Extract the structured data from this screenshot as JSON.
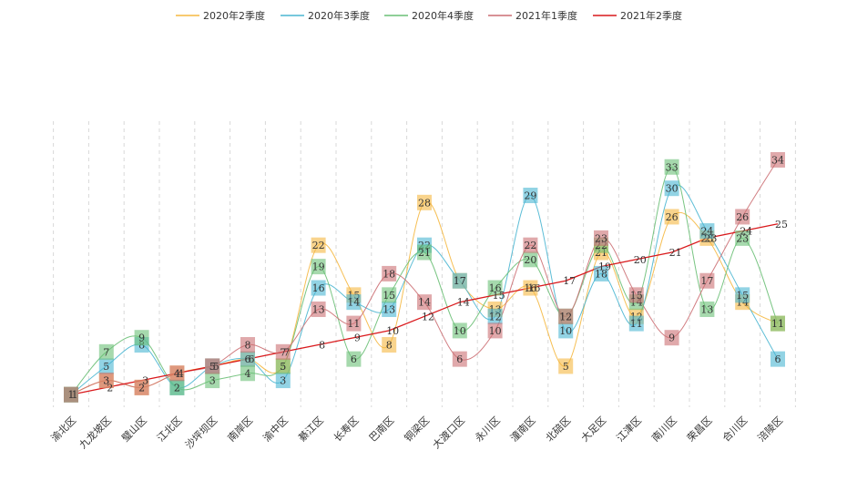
{
  "chart_data": {
    "type": "line",
    "categories": [
      "渝北区",
      "九龙坡区",
      "璧山区",
      "江北区",
      "沙坪坝区",
      "南岸区",
      "渝中区",
      "綦江区",
      "长寿区",
      "巴南区",
      "铜梁区",
      "大渡口区",
      "永川区",
      "潼南区",
      "北碚区",
      "大足区",
      "江津区",
      "南川区",
      "荣昌区",
      "合川区",
      "涪陵区"
    ],
    "series": [
      {
        "name": "2020年2季度",
        "color": "#f5b841",
        "values": [
          1,
          3,
          2,
          4,
          5,
          6,
          5,
          22,
          15,
          8,
          28,
          17,
          13,
          16,
          5,
          21,
          12,
          26,
          23,
          14,
          11
        ]
      },
      {
        "name": "2020年3季度",
        "color": "#4ab6d2",
        "values": [
          1,
          5,
          8,
          2,
          5,
          6,
          3,
          16,
          14,
          13,
          22,
          17,
          12,
          29,
          10,
          18,
          11,
          30,
          24,
          15,
          6
        ]
      },
      {
        "name": "2020年4季度",
        "color": "#6abf76",
        "values": [
          1,
          7,
          9,
          2,
          3,
          4,
          5,
          19,
          6,
          15,
          21,
          10,
          16,
          20,
          12,
          22,
          14,
          33,
          13,
          23,
          11
        ]
      },
      {
        "name": "2021年1季度",
        "color": "#cc6f73",
        "values": [
          1,
          3,
          2,
          4,
          5,
          8,
          7,
          13,
          11,
          18,
          14,
          6,
          10,
          22,
          12,
          23,
          15,
          9,
          17,
          26,
          34
        ]
      },
      {
        "name": "2021年2季度",
        "color": "#d9191c",
        "values": [
          1,
          2,
          3,
          4,
          5,
          6,
          7,
          8,
          9,
          10,
          12,
          14,
          15,
          16,
          17,
          19,
          20,
          21,
          23,
          24,
          25
        ]
      }
    ],
    "ylim": [
      0,
      35
    ],
    "grid": "vertical-dashed",
    "legend_position": "top-center"
  }
}
